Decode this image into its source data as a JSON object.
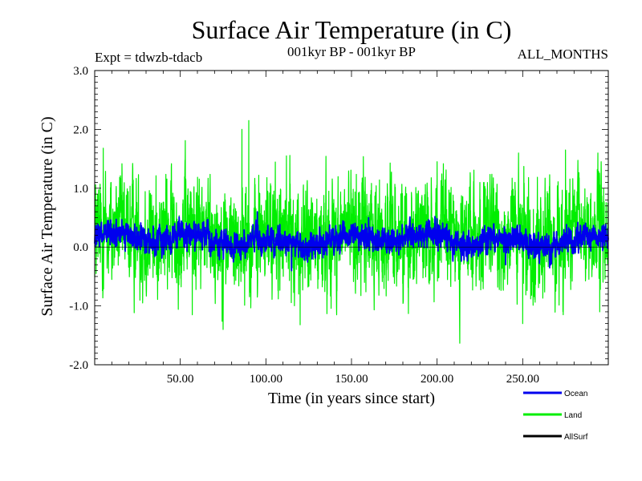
{
  "chart_data": {
    "type": "line",
    "title": "Surface Air Temperature (in C)",
    "subtitle_left": "Expt = tdwzb-tdacb",
    "subtitle_center": "001kyr BP - 001kyr BP",
    "subtitle_right": "ALL_MONTHS",
    "xlabel": "Time (in years since start)",
    "ylabel": "Surface Air Temperature (in C)",
    "xlim": [
      0,
      300
    ],
    "ylim": [
      -2.0,
      3.0
    ],
    "x_ticks": [
      50,
      100,
      150,
      200,
      250
    ],
    "x_tick_labels": [
      "50.00",
      "100.00",
      "150.00",
      "200.00",
      "250.00"
    ],
    "y_ticks": [
      -2.0,
      -1.0,
      0.0,
      1.0,
      2.0,
      3.0
    ],
    "y_tick_labels": [
      "-2.0",
      "-1.0",
      "0.0",
      "1.0",
      "2.0",
      "3.0"
    ],
    "samples_per_year": 12,
    "series": [
      {
        "name": "Land",
        "color": "#00ee00",
        "mean": 0.2,
        "noise_amplitude": 0.45,
        "extremes": [
          {
            "x": 5,
            "y": 1.68
          },
          {
            "x": 10,
            "y": -0.55
          },
          {
            "x": 28,
            "y": -0.95
          },
          {
            "x": 57,
            "y": -1.15
          },
          {
            "x": 75,
            "y": -1.4
          },
          {
            "x": 86,
            "y": 2.0
          },
          {
            "x": 90,
            "y": 2.15
          },
          {
            "x": 95,
            "y": -0.85
          },
          {
            "x": 112,
            "y": 1.55
          },
          {
            "x": 120,
            "y": -1.32
          },
          {
            "x": 200,
            "y": 1.45
          },
          {
            "x": 250,
            "y": -1.3
          },
          {
            "x": 275,
            "y": 1.65
          },
          {
            "x": 295,
            "y": -1.1
          }
        ]
      },
      {
        "name": "Ocean",
        "color": "#0000ee",
        "mean": 0.12,
        "noise_amplitude": 0.13,
        "extremes": [
          {
            "x": 8,
            "y": 0.45
          },
          {
            "x": 95,
            "y": 0.6
          },
          {
            "x": 115,
            "y": -0.4
          },
          {
            "x": 160,
            "y": 0.5
          },
          {
            "x": 240,
            "y": -0.3
          }
        ]
      },
      {
        "name": "AllSurf",
        "color": "#000000",
        "values": []
      }
    ]
  }
}
